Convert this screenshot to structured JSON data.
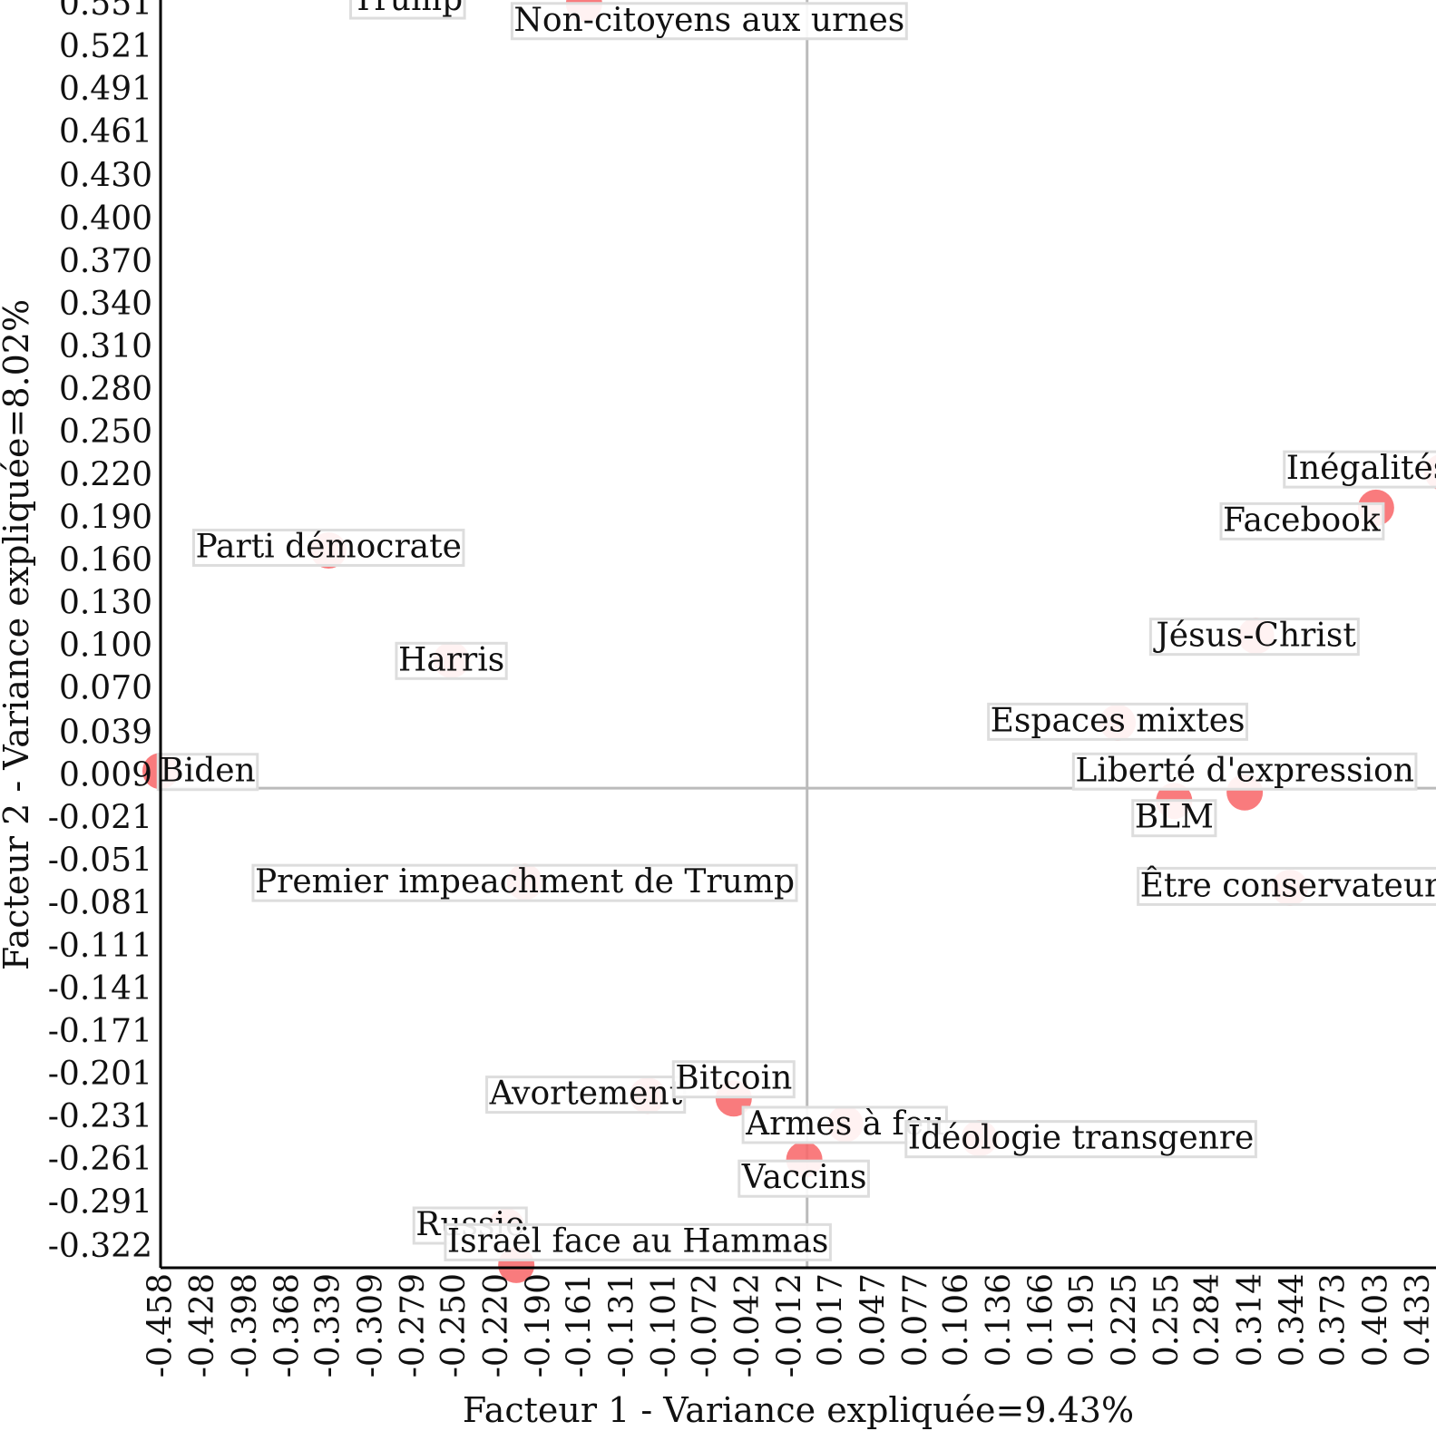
{
  "chart_data": {
    "type": "scatter",
    "xlabel": "Facteur 1 - Variance expliquée=9.43%",
    "ylabel": "Facteur 2 - Variance expliquée=8.02%",
    "xlim": [
      -0.458,
      0.45
    ],
    "ylim": [
      -0.337,
      0.562
    ],
    "x_ticks": [
      "-0.458",
      "-0.428",
      "-0.398",
      "-0.368",
      "-0.339",
      "-0.309",
      "-0.279",
      "-0.250",
      "-0.220",
      "-0.190",
      "-0.161",
      "-0.131",
      "-0.101",
      "-0.072",
      "-0.042",
      "-0.012",
      "0.017",
      "0.047",
      "0.077",
      "0.106",
      "0.136",
      "0.166",
      "0.195",
      "0.225",
      "0.255",
      "0.284",
      "0.314",
      "0.344",
      "0.373",
      "0.403",
      "0.433"
    ],
    "y_ticks": [
      "0.551",
      "0.521",
      "0.491",
      "0.461",
      "0.430",
      "0.400",
      "0.370",
      "0.340",
      "0.310",
      "0.280",
      "0.250",
      "0.220",
      "0.190",
      "0.160",
      "0.130",
      "0.100",
      "0.070",
      "0.039",
      "0.009",
      "-0.021",
      "-0.051",
      "-0.081",
      "-0.111",
      "-0.141",
      "-0.171",
      "-0.201",
      "-0.231",
      "-0.261",
      "-0.291",
      "-0.322"
    ],
    "reference_lines": {
      "x": 0.0,
      "y": 0.0
    },
    "grid": false,
    "point_color": "#f8696b",
    "line_color": "#bbbbbb",
    "points": [
      {
        "label": "Trump",
        "x": -0.283,
        "y": 0.568,
        "label_dx": 0,
        "label_dy": 22
      },
      {
        "label": "Non-citoyens aux urnes",
        "x": -0.158,
        "y": 0.551,
        "label_dx": 138,
        "label_dy": 18
      },
      {
        "label": "Inégalités",
        "x": 0.45,
        "y": 0.222,
        "label_dx": -82,
        "label_dy": -4
      },
      {
        "label": "Facebook",
        "x": 0.403,
        "y": 0.197,
        "label_dx": -82,
        "label_dy": 14
      },
      {
        "label": "Parti démocrate",
        "x": -0.339,
        "y": 0.167,
        "label_dx": 0,
        "label_dy": -4
      },
      {
        "label": "Jésus-Christ",
        "x": 0.318,
        "y": 0.107,
        "label_dx": 0,
        "label_dy": 0
      },
      {
        "label": "Harris",
        "x": -0.252,
        "y": 0.09,
        "label_dx": 0,
        "label_dy": 0
      },
      {
        "label": "Espaces mixtes",
        "x": 0.22,
        "y": 0.046,
        "label_dx": 0,
        "label_dy": -2
      },
      {
        "label": "Biden",
        "x": -0.458,
        "y": 0.012,
        "label_dx": 52,
        "label_dy": 0
      },
      {
        "label": "Liberté d'expression",
        "x": 0.31,
        "y": -0.003,
        "label_dx": 0,
        "label_dy": -24
      },
      {
        "label": "BLM",
        "x": 0.26,
        "y": -0.009,
        "label_dx": 0,
        "label_dy": 18
      },
      {
        "label": "Être conservateur",
        "x": 0.342,
        "y": -0.07,
        "label_dx": 0,
        "label_dy": -2
      },
      {
        "label": "Premier impeachment de Trump",
        "x": -0.2,
        "y": -0.066,
        "label_dx": 0,
        "label_dy": 0
      },
      {
        "label": "Avortement",
        "x": -0.113,
        "y": -0.216,
        "label_dx": -68,
        "label_dy": -2
      },
      {
        "label": "Bitcoin",
        "x": -0.052,
        "y": -0.218,
        "label_dx": 0,
        "label_dy": -22
      },
      {
        "label": "Armes à feu",
        "x": 0.027,
        "y": -0.236,
        "label_dx": 0,
        "label_dy": 0
      },
      {
        "label": "Idéologie transgenre",
        "x": 0.122,
        "y": -0.246,
        "label_dx": 112,
        "label_dy": 0
      },
      {
        "label": "Vaccins",
        "x": -0.002,
        "y": -0.261,
        "label_dx": 0,
        "label_dy": 20
      },
      {
        "label": "Russie",
        "x": -0.213,
        "y": -0.308,
        "label_dx": -40,
        "label_dy": -2
      },
      {
        "label": "Israël face au Hammas",
        "x": -0.206,
        "y": -0.335,
        "label_dx": 134,
        "label_dy": -26
      }
    ]
  }
}
